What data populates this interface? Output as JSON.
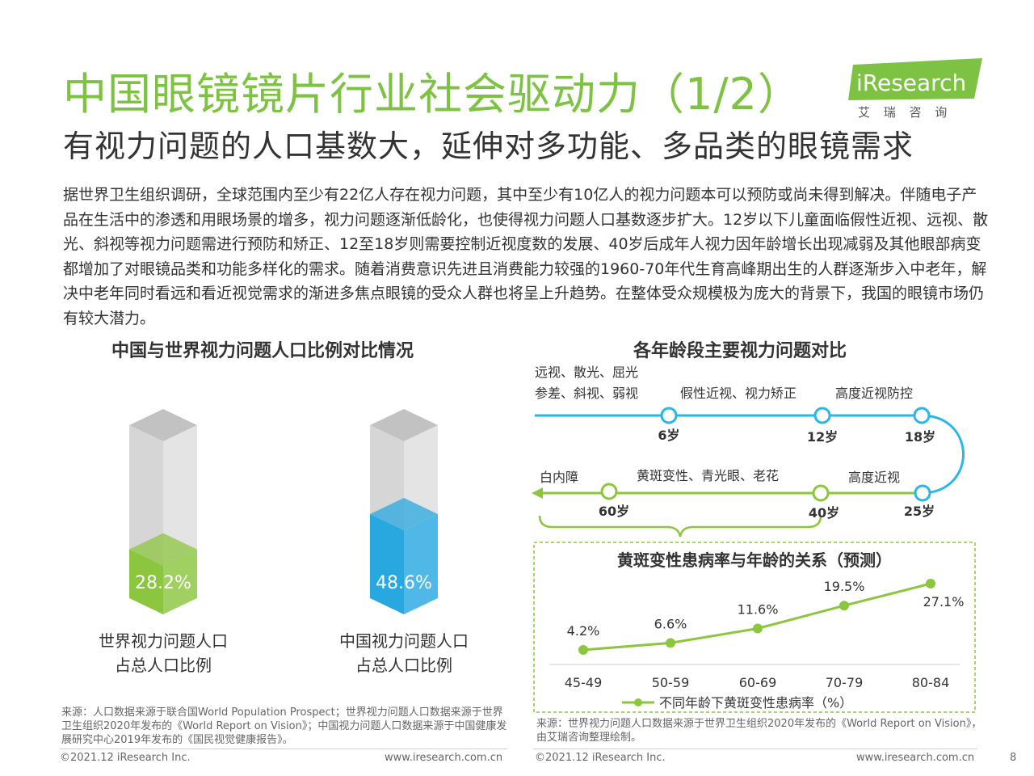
{
  "header": {
    "title": "中国眼镜镜片行业社会驱动力（1/2）",
    "subtitle": "有视力问题的人口基数大，延伸对多功能、多品类的眼镜需求",
    "logo_text": "iResearch",
    "logo_cn": "艾 瑞 咨 询"
  },
  "body_text": "据世界卫生组织调研，全球范围内至少有22亿人存在视力问题，其中至少有10亿人的视力问题本可以预防或尚未得到解决。伴随电子产品在生活中的渗透和用眼场景的增多，视力问题逐渐低龄化，也使得视力问题人口基数逐步扩大。12岁以下儿童面临假性近视、远视、散光、斜视等视力问题需进行预防和矫正、12至18岁则需要控制近视度数的发展、40岁后成年人视力因年龄增长出现减弱及其他眼部病变都增加了对眼镜品类和功能多样化的需求。随着消费意识先进且消费能力较强的1960-70年代生育高峰期出生的人群逐渐步入中老年，解决中老年同时看远和看近视觉需求的渐进多焦点眼镜的受众人群也将呈上升趋势。在整体受众规模极为庞大的背景下，我国的眼镜市场仍有较大潜力。",
  "left_section": {
    "title": "中国与世界视力问题人口比例对比情况",
    "source": "来源：人口数据来源于联合国World Population Prospect；世界视力问题人口数据来源于世界卫生组织2020年发布的《World Report on Vision》；中国视力问题人口数据来源于中国健康发展研究中心2019年发布的《国民视觉健康报告》。"
  },
  "right_section": {
    "title": "各年龄段主要视力问题对比",
    "timeline": {
      "top_row": {
        "group1": [
          "远视、散光、屈光",
          "参差、斜视、弱视"
        ],
        "group2": "假性近视、视力矫正",
        "group3": "高度近视防控",
        "nodes": [
          "6岁",
          "12岁",
          "18岁"
        ]
      },
      "bottom_row": {
        "group1": "白内障",
        "group2": "黄斑变性、青光眼、老花",
        "group3": "高度近视",
        "nodes": [
          "60岁",
          "40岁",
          "25岁"
        ]
      }
    },
    "source": "来源：世界视力问题人口数据来源于世界卫生组织2020年发布的《World Report on Vision》，由艾瑞咨询整理绘制。"
  },
  "chart_data": [
    {
      "type": "bar",
      "style": "3d-cylinder-fill",
      "categories": [
        "世界视力问题人口占总人口比例",
        "中国视力问题人口占总人口比例"
      ],
      "category_lines": [
        [
          "世界视力问题人口",
          "占总人口比例"
        ],
        [
          "中国视力问题人口",
          "占总人口比例"
        ]
      ],
      "values": [
        28.2,
        48.6
      ],
      "labels": [
        "28.2%",
        "48.6%"
      ],
      "ylim": [
        0,
        100
      ],
      "colors": [
        "#8cc63f",
        "#29a8e0"
      ],
      "empty_color": "#d0d0d0"
    },
    {
      "type": "line",
      "title": "黄斑变性患病率与年龄的关系（预测）",
      "categories": [
        "45-49",
        "50-59",
        "60-69",
        "70-79",
        "80-84"
      ],
      "series": [
        {
          "name": "不同年龄下黄斑变性患病率（%）",
          "values": [
            4.2,
            6.6,
            11.6,
            19.5,
            27.1
          ]
        }
      ],
      "labels": [
        "4.2%",
        "6.6%",
        "11.6%",
        "19.5%",
        "27.1%"
      ],
      "color": "#8cc63f",
      "legend": "bottom"
    }
  ],
  "footer": {
    "left_copyright": "©2021.12 iResearch Inc.",
    "left_url": "www.iresearch.com.cn",
    "right_copyright": "©2021.12 iResearch Inc.",
    "right_url": "www.iresearch.com.cn",
    "page_number": "8"
  }
}
